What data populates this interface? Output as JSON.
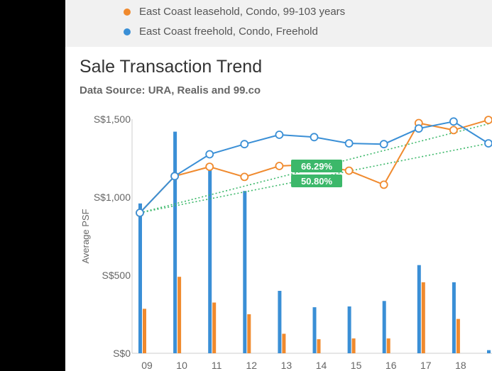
{
  "legend": {
    "items": [
      {
        "label": "East Coast leasehold, Condo, 99-103 years",
        "color": "#f08a2e"
      },
      {
        "label": "East Coast freehold, Condo, Freehold",
        "color": "#3a8fd6"
      }
    ]
  },
  "header": {
    "title": "Sale Transaction Trend",
    "source": "Data Source: URA, Realis and 99.co"
  },
  "chart_data": {
    "type": "bar+line",
    "ylabel": "Average PSF",
    "ylim": [
      0,
      1500
    ],
    "yticks": [
      "S$0",
      "S$500",
      "S$1,000",
      "S$1,500"
    ],
    "ytick_values": [
      0,
      500,
      1000,
      1500
    ],
    "categories": [
      "09",
      "10",
      "11",
      "12",
      "13",
      "14",
      "15",
      "16",
      "17",
      "18",
      ""
    ],
    "grid": false,
    "colors": {
      "leasehold": "#f08a2e",
      "freehold": "#3a8fd6",
      "trend": "#3cb86a"
    },
    "bars": [
      {
        "values": [
          960,
          1420,
          1200,
          1040,
          400,
          295,
          300,
          335,
          565,
          455,
          20
        ]
      },
      {
        "values": [
          285,
          490,
          325,
          250,
          125,
          90,
          95,
          95,
          455,
          220,
          null
        ]
      }
    ],
    "lines": [
      {
        "values": [
          900,
          1135,
          1275,
          1340,
          1400,
          1385,
          1345,
          1340,
          1440,
          1485,
          1345
        ]
      },
      {
        "values": [
          900,
          1135,
          1195,
          1130,
          1200,
          1210,
          1170,
          1080,
          1475,
          1430,
          1495
        ]
      }
    ],
    "trendlines": [
      {
        "from": [
          0,
          900
        ],
        "to": [
          10,
          1470
        ]
      },
      {
        "from": [
          0,
          900
        ],
        "to": [
          10,
          1345
        ]
      }
    ],
    "annotations": [
      {
        "text": "66.29%"
      },
      {
        "text": "50.80%"
      }
    ]
  }
}
